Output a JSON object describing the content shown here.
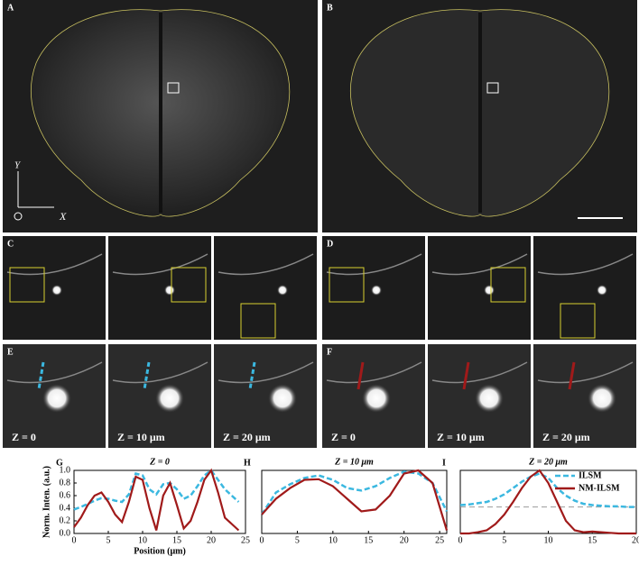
{
  "figure": {
    "panel_labels": [
      "A",
      "B",
      "C",
      "D",
      "E",
      "F"
    ],
    "axis_labels": [
      "X",
      "Y"
    ],
    "depth_labels": [
      "Z = 0",
      "Z = 10 μm",
      "Z = 20 μm",
      "Z = 0",
      "Z = 10 μm",
      "Z = 20 μm"
    ]
  },
  "chart_data": [
    {
      "type": "line",
      "label": "G",
      "title": "Z = 0",
      "x_label": "Position (μm)",
      "y_label": "Norm. Inten. (a.u.)",
      "x": [
        0,
        1,
        2,
        3,
        4,
        5,
        6,
        7,
        8,
        9,
        10,
        11,
        12,
        13,
        14,
        15,
        16,
        17,
        18,
        19,
        20,
        21,
        22,
        23,
        24
      ],
      "series": [
        {
          "name": "ILSM",
          "color": "#3bb8e0",
          "dashed": true,
          "values": [
            0.38,
            0.42,
            0.47,
            0.52,
            0.56,
            0.55,
            0.52,
            0.5,
            0.62,
            0.95,
            0.92,
            0.7,
            0.62,
            0.78,
            0.8,
            0.7,
            0.55,
            0.6,
            0.75,
            0.92,
            1.0,
            0.85,
            0.7,
            0.6,
            0.5
          ]
        },
        {
          "name": "NM-ILSM",
          "color": "#a01a1a",
          "dashed": false,
          "values": [
            0.1,
            0.25,
            0.45,
            0.6,
            0.65,
            0.5,
            0.3,
            0.18,
            0.5,
            0.9,
            0.85,
            0.4,
            0.05,
            0.6,
            0.8,
            0.45,
            0.08,
            0.2,
            0.5,
            0.85,
            1.0,
            0.65,
            0.25,
            0.15,
            0.05
          ]
        }
      ],
      "xlim": [
        0,
        25
      ],
      "xticks": [
        0,
        5,
        10,
        15,
        20,
        25
      ],
      "ylim": [
        0,
        1
      ],
      "yticks": [
        {
          "value": 0,
          "label": "0.0"
        },
        0.2,
        0.4,
        0.6,
        0.8,
        {
          "value": 1,
          "label": "1.0"
        }
      ]
    },
    {
      "type": "line",
      "label": "H",
      "title": "Z = 10 μm",
      "x": [
        0,
        2,
        4,
        6,
        8,
        10,
        12,
        14,
        16,
        18,
        20,
        22,
        24,
        26
      ],
      "series": [
        {
          "name": "ILSM",
          "color": "#3bb8e0",
          "dashed": true,
          "values": [
            0.3,
            0.65,
            0.78,
            0.88,
            0.92,
            0.85,
            0.72,
            0.68,
            0.75,
            0.88,
            0.98,
            0.95,
            0.8,
            0.35
          ]
        },
        {
          "name": "NM-ILSM",
          "color": "#a01a1a",
          "dashed": false,
          "values": [
            0.3,
            0.55,
            0.72,
            0.85,
            0.86,
            0.75,
            0.55,
            0.35,
            0.38,
            0.6,
            0.95,
            1.0,
            0.8,
            0.05
          ]
        }
      ],
      "xlim": [
        0,
        26
      ],
      "xticks": [
        0,
        5,
        10,
        15,
        20,
        25
      ],
      "ylim": [
        0,
        1
      ]
    },
    {
      "type": "line",
      "label": "I",
      "title": "Z = 20 μm",
      "legend": "upper right",
      "hline": 0.42,
      "x": [
        0,
        1,
        2,
        3,
        4,
        5,
        6,
        7,
        8,
        9,
        10,
        11,
        12,
        13,
        14,
        15,
        16,
        17,
        18,
        19,
        20
      ],
      "series": [
        {
          "name": "ILSM",
          "color": "#3bb8e0",
          "dashed": true,
          "values": [
            0.45,
            0.46,
            0.48,
            0.5,
            0.55,
            0.62,
            0.72,
            0.82,
            0.9,
            0.95,
            0.88,
            0.72,
            0.6,
            0.52,
            0.47,
            0.45,
            0.44,
            0.43,
            0.43,
            0.42,
            0.42
          ]
        },
        {
          "name": "NM-ILSM",
          "color": "#a01a1a",
          "dashed": false,
          "values": [
            0,
            0,
            0.02,
            0.05,
            0.15,
            0.3,
            0.5,
            0.72,
            0.9,
            1.0,
            0.8,
            0.5,
            0.2,
            0.05,
            0.02,
            0.03,
            0.02,
            0.01,
            0,
            0,
            0
          ]
        }
      ],
      "xlim": [
        0,
        20
      ],
      "xticks": [
        0,
        5,
        10,
        15,
        20
      ],
      "ylim": [
        0,
        1
      ]
    }
  ]
}
